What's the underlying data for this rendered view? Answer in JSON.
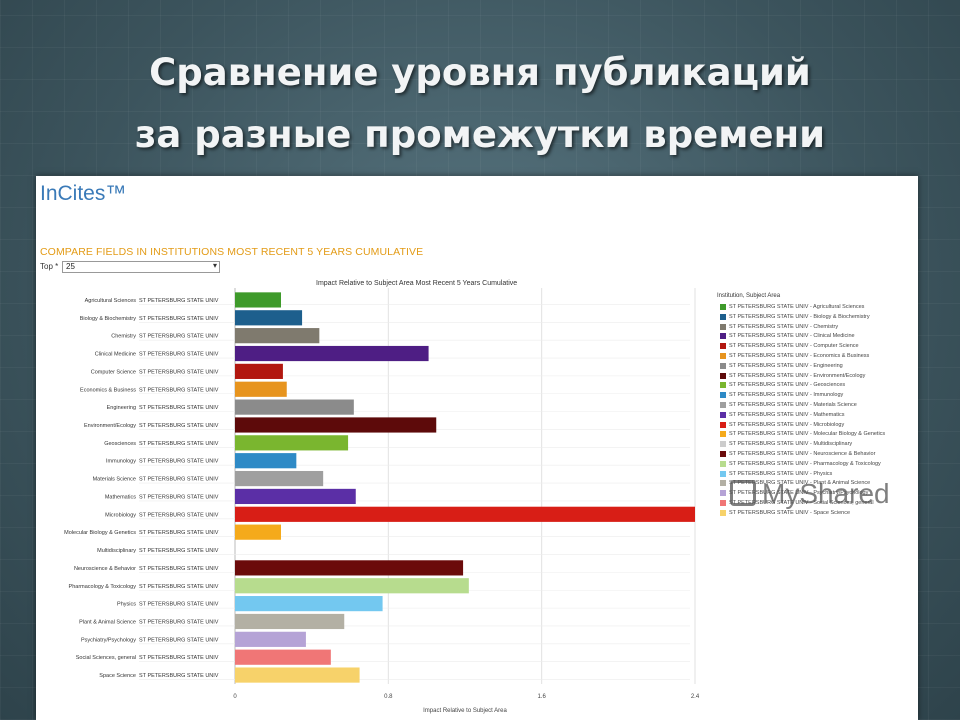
{
  "slide": {
    "title_line1": "Сравнение уровня публикаций",
    "title_line2": "за разные промежутки времени"
  },
  "screenshot": {
    "brand": "InCites™",
    "report_title": "COMPARE FIELDS IN INSTITUTIONS MOST RECENT 5 YEARS CUMULATIVE",
    "top_label": "Top *",
    "top_value": "25",
    "dropdown_icon": "triangle-down",
    "legend_title": "Institution, Subject Area"
  },
  "watermark": "MyShared",
  "chart_data": {
    "type": "bar",
    "orientation": "horizontal",
    "title": "Impact Relative to Subject Area Most Recent 5 Years Cumulative",
    "xlabel": "Impact Relative to Subject Area",
    "xlim": [
      0,
      2.4
    ],
    "xticks": [
      "0",
      "0.8",
      "1.6",
      "2.4"
    ],
    "institution": "ST PETERSBURG STATE UNIV",
    "grid": true,
    "legend_position": "right",
    "categories": [
      "Agricultural Sciences",
      "Biology & Biochemistry",
      "Chemistry",
      "Clinical Medicine",
      "Computer Science",
      "Economics & Business",
      "Engineering",
      "Environment/Ecology",
      "Geosciences",
      "Immunology",
      "Materials Science",
      "Mathematics",
      "Microbiology",
      "Molecular Biology & Genetics",
      "Multidisciplinary",
      "Neuroscience & Behavior",
      "Pharmacology & Toxicology",
      "Physics",
      "Plant & Animal Science",
      "Psychiatry/Psychology",
      "Social Sciences, general",
      "Space Science"
    ],
    "values": [
      0.24,
      0.35,
      0.44,
      1.01,
      0.25,
      0.27,
      0.62,
      1.05,
      0.59,
      0.32,
      0.46,
      0.63,
      2.4,
      0.24,
      0.0,
      1.19,
      1.22,
      0.77,
      0.57,
      0.37,
      0.5,
      0.65
    ],
    "colors": [
      "#3e9a2a",
      "#1d5f8d",
      "#7f7a6e",
      "#4e1e84",
      "#b2170f",
      "#e7941e",
      "#8b8b8b",
      "#5d0a0a",
      "#7ab62f",
      "#2e8ac6",
      "#9f9f9f",
      "#5b2fa6",
      "#d81e16",
      "#f5aa1b",
      "#cccccc",
      "#6b0b0b",
      "#b7dc8e",
      "#73c8f0",
      "#b3b0a4",
      "#b5a3d6",
      "#f07676",
      "#f7d26a"
    ],
    "legend": [
      "ST PETERSBURG STATE UNIV - Agricultural Sciences",
      "ST PETERSBURG STATE UNIV - Biology & Biochemistry",
      "ST PETERSBURG STATE UNIV - Chemistry",
      "ST PETERSBURG STATE UNIV - Clinical Medicine",
      "ST PETERSBURG STATE UNIV - Computer Science",
      "ST PETERSBURG STATE UNIV - Economics & Business",
      "ST PETERSBURG STATE UNIV - Engineering",
      "ST PETERSBURG STATE UNIV - Environment/Ecology",
      "ST PETERSBURG STATE UNIV - Geosciences",
      "ST PETERSBURG STATE UNIV - Immunology",
      "ST PETERSBURG STATE UNIV - Materials Science",
      "ST PETERSBURG STATE UNIV - Mathematics",
      "ST PETERSBURG STATE UNIV - Microbiology",
      "ST PETERSBURG STATE UNIV - Molecular Biology & Genetics",
      "ST PETERSBURG STATE UNIV - Multidisciplinary",
      "ST PETERSBURG STATE UNIV - Neuroscience & Behavior",
      "ST PETERSBURG STATE UNIV - Pharmacology & Toxicology",
      "ST PETERSBURG STATE UNIV - Physics",
      "ST PETERSBURG STATE UNIV - Plant & Animal Science",
      "ST PETERSBURG STATE UNIV - Psychiatry/Psychology",
      "ST PETERSBURG STATE UNIV - Social Sciences, general",
      "ST PETERSBURG STATE UNIV - Space Science"
    ]
  }
}
